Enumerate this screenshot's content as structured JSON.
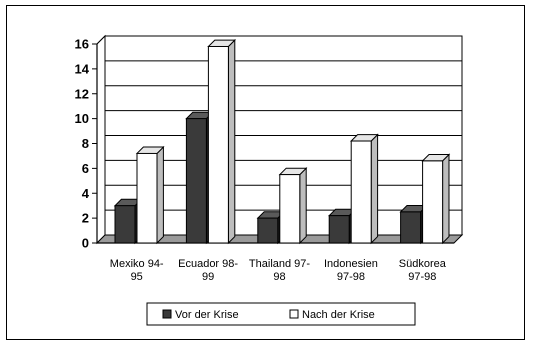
{
  "chart_data": {
    "type": "bar",
    "categories": [
      [
        "Mexiko 94-",
        "95"
      ],
      [
        "Ecuador 98-",
        "99"
      ],
      [
        "Thailand 97-",
        "98"
      ],
      [
        "Indonesien",
        "97-98"
      ],
      [
        "Südkorea",
        "97-98"
      ]
    ],
    "series": [
      {
        "name": "Vor der Krise",
        "values": [
          3,
          10,
          2,
          2.2,
          2.5
        ]
      },
      {
        "name": "Nach der Krise",
        "values": [
          7.2,
          15.8,
          5.5,
          8.2,
          6.6
        ]
      }
    ],
    "ylim": [
      0,
      16
    ],
    "yticks": [
      0,
      2,
      4,
      6,
      8,
      10,
      12,
      14,
      16
    ],
    "grid": true,
    "legend_position": "bottom",
    "colors": {
      "Vor der Krise": "#3a3a3a",
      "Nach der Krise": "#ffffff",
      "floor": "#9a9a9a"
    }
  }
}
